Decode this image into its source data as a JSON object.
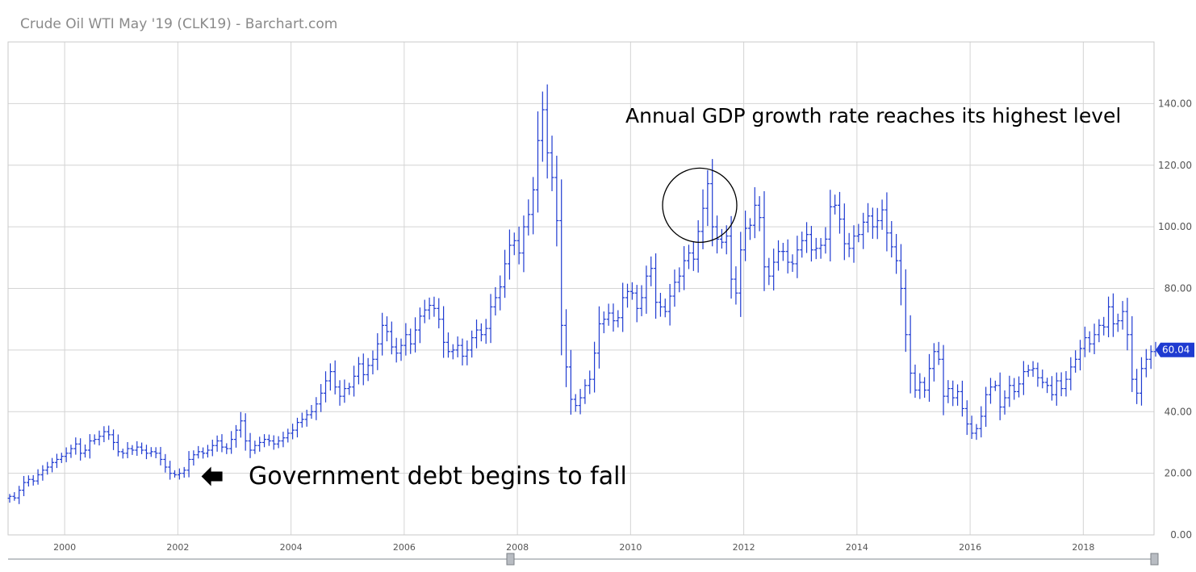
{
  "title": "Crude Oil WTI May '19 (CLK19) - Barchart.com",
  "chart_data": {
    "type": "ohlc",
    "title": "Crude Oil WTI May '19 (CLK19) - Barchart.com",
    "x_ticks": [
      "2000",
      "2002",
      "2004",
      "2006",
      "2008",
      "2010",
      "2012",
      "2014",
      "2016",
      "2018"
    ],
    "y_ticks": [
      "0.00",
      "20.00",
      "40.00",
      "60.00",
      "80.00",
      "100.00",
      "120.00",
      "140.00"
    ],
    "xlim": [
      "1999-01",
      "2019-04"
    ],
    "ylim": [
      0,
      160
    ],
    "grid": true,
    "last_value": "60.04",
    "colors": {
      "bars": "#1f3bd1",
      "last_badge": "#1f3bd1"
    },
    "annotations": [
      {
        "text": "Annual GDP growth rate reaches its highest level",
        "date": "2011-04",
        "value": 107
      },
      {
        "text": "Government debt begins to fall",
        "date": "2002-06",
        "value": 19,
        "marker": "left-arrow"
      }
    ],
    "closes": [
      12.5,
      12.0,
      14.5,
      17.0,
      18.0,
      17.5,
      19.5,
      21.0,
      22.0,
      23.5,
      24.5,
      25.5,
      26.5,
      28.0,
      29.5,
      26.5,
      27.5,
      30.5,
      31.0,
      32.0,
      33.5,
      32.5,
      30.0,
      27.0,
      26.5,
      28.0,
      27.5,
      28.5,
      27.5,
      26.5,
      27.0,
      26.5,
      24.5,
      22.0,
      20.0,
      19.5,
      20.0,
      21.0,
      24.5,
      26.0,
      27.0,
      26.5,
      27.5,
      29.0,
      30.5,
      28.5,
      28.0,
      31.0,
      34.0,
      37.0,
      30.5,
      27.5,
      29.0,
      30.0,
      31.0,
      30.5,
      29.5,
      30.5,
      31.5,
      33.0,
      34.0,
      36.5,
      37.5,
      39.0,
      40.0,
      42.5,
      46.0,
      50.0,
      53.0,
      48.0,
      45.0,
      47.5,
      48.0,
      51.5,
      55.5,
      52.0,
      55.0,
      57.0,
      62.0,
      68.0,
      66.0,
      61.0,
      59.0,
      61.5,
      65.0,
      62.0,
      66.5,
      71.0,
      73.0,
      74.5,
      73.5,
      70.0,
      62.5,
      59.5,
      60.0,
      61.5,
      58.0,
      60.0,
      64.0,
      66.5,
      65.0,
      67.0,
      74.0,
      77.0,
      80.5,
      88.0,
      94.0,
      95.5,
      91.5,
      100.0,
      104.0,
      112.0,
      128.0,
      138.0,
      124.0,
      116.0,
      102.0,
      68.0,
      54.5,
      44.0,
      42.0,
      44.5,
      48.5,
      50.5,
      59.0,
      68.5,
      70.0,
      72.0,
      69.5,
      70.5,
      77.0,
      79.0,
      78.5,
      73.5,
      77.0,
      84.0,
      86.5,
      75.5,
      74.0,
      72.5,
      77.5,
      82.0,
      84.0,
      89.0,
      91.5,
      89.5,
      98.5,
      106.0,
      114.0,
      100.0,
      96.0,
      95.0,
      97.0,
      83.0,
      78.5,
      92.5,
      99.5,
      100.5,
      107.0,
      103.0,
      87.0,
      84.0,
      88.5,
      92.0,
      92.0,
      88.5,
      88.0,
      92.5,
      95.5,
      97.5,
      92.5,
      93.0,
      94.0,
      96.0,
      106.5,
      107.0,
      102.5,
      94.5,
      93.0,
      97.0,
      97.5,
      101.5,
      103.5,
      100.0,
      102.0,
      105.5,
      98.0,
      93.5,
      89.0,
      80.0,
      65.0,
      52.5,
      47.0,
      49.5,
      47.0,
      54.0,
      59.5,
      57.0,
      45.0,
      47.5,
      44.5,
      46.5,
      41.0,
      36.0,
      33.0,
      34.5,
      38.5,
      45.5,
      48.0,
      48.5,
      41.5,
      44.5,
      48.5,
      46.5,
      49.0,
      53.0,
      53.5,
      54.0,
      51.0,
      49.5,
      48.5,
      45.5,
      50.0,
      47.5,
      50.5,
      54.5,
      57.0,
      60.5,
      64.0,
      62.0,
      65.0,
      68.0,
      67.5,
      74.0,
      68.5,
      69.5,
      72.5,
      65.0,
      50.5,
      46.0,
      54.0,
      57.0,
      59.5,
      60.04
    ]
  }
}
